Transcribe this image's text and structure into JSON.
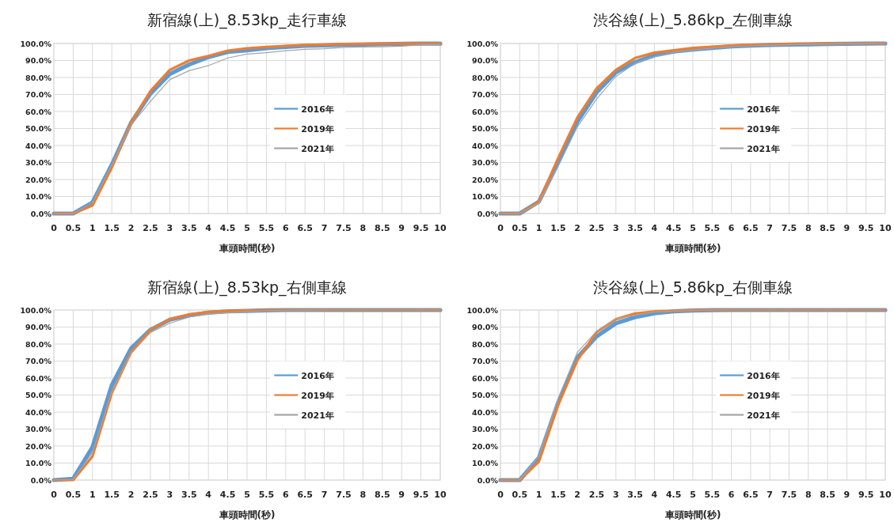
{
  "chart_data": [
    {
      "type": "line",
      "title": "新宿線(上)_8.53kp_走行車線",
      "xlabel": "車頭時間(秒)",
      "x": [
        0,
        0.5,
        1,
        1.5,
        2,
        2.5,
        3,
        3.5,
        4,
        4.5,
        5,
        5.5,
        6,
        6.5,
        7,
        7.5,
        8,
        8.5,
        9,
        9.5,
        10
      ],
      "xlim": [
        0,
        10
      ],
      "xticks": [
        0,
        0.5,
        1,
        1.5,
        2,
        2.5,
        3,
        3.5,
        4,
        4.5,
        5,
        5.5,
        6,
        6.5,
        7,
        7.5,
        8,
        8.5,
        9,
        9.5,
        10
      ],
      "ylim": [
        0,
        100
      ],
      "yticks": [
        {
          "value": 0,
          "label": "0.0%"
        },
        {
          "value": 10,
          "label": "10.0%"
        },
        {
          "value": 20,
          "label": "20.0%"
        },
        {
          "value": 30,
          "label": "30.0%"
        },
        {
          "value": 40,
          "label": "40.0%"
        },
        {
          "value": 50,
          "label": "50.0%"
        },
        {
          "value": 60,
          "label": "60.0%"
        },
        {
          "value": 70,
          "label": "70.0%"
        },
        {
          "value": 80,
          "label": "80.0%"
        },
        {
          "value": 90,
          "label": "90.0%"
        },
        {
          "value": 100,
          "label": "100.0%"
        }
      ],
      "grid": true,
      "legend": "right",
      "line_style": "solid",
      "series": [
        {
          "name": "2016年",
          "color": "#5b9bd5",
          "values": [
            0,
            0,
            6.5,
            28.7,
            53.5,
            70.5,
            82,
            87.6,
            92,
            95,
            96,
            97.2,
            98,
            98.6,
            98.9,
            99.2,
            99.4,
            99.6,
            99.8,
            99.9,
            99.9
          ]
        },
        {
          "name": "2019年",
          "color": "#ed7d31",
          "values": [
            0,
            0,
            4.7,
            27,
            53.5,
            72,
            84.5,
            90,
            92.7,
            95.8,
            97.2,
            98,
            98.6,
            99.1,
            99.4,
            99.7,
            99.8,
            99.9,
            99.9,
            100,
            100
          ]
        },
        {
          "name": "2021年",
          "color": "#a5a5a5",
          "values": [
            0,
            0,
            6.5,
            28.7,
            52,
            66,
            78.8,
            84,
            87,
            91.5,
            93.8,
            94.6,
            95.8,
            96.6,
            96.9,
            97.7,
            98,
            98.1,
            98.4,
            99.2,
            99.5
          ]
        }
      ]
    },
    {
      "type": "line",
      "title": "渋谷線(上)_5.86kp_左側車線",
      "xlabel": "車頭時間(秒)",
      "x": [
        0,
        0.5,
        1,
        1.5,
        2,
        2.5,
        3,
        3.5,
        4,
        4.5,
        5,
        5.5,
        6,
        6.5,
        7,
        7.5,
        8,
        8.5,
        9,
        9.5,
        10
      ],
      "xlim": [
        0,
        10
      ],
      "xticks": [
        0,
        0.5,
        1,
        1.5,
        2,
        2.5,
        3,
        3.5,
        4,
        4.5,
        5,
        5.5,
        6,
        6.5,
        7,
        7.5,
        8,
        8.5,
        9,
        9.5,
        10
      ],
      "ylim": [
        0,
        100
      ],
      "yticks": [
        {
          "value": 0,
          "label": "0.0%"
        },
        {
          "value": 10,
          "label": "10.0%"
        },
        {
          "value": 20,
          "label": "20.0%"
        },
        {
          "value": 30,
          "label": "30.0%"
        },
        {
          "value": 40,
          "label": "40.0%"
        },
        {
          "value": 50,
          "label": "50.0%"
        },
        {
          "value": 60,
          "label": "60.0%"
        },
        {
          "value": 70,
          "label": "70.0%"
        },
        {
          "value": 80,
          "label": "80.0%"
        },
        {
          "value": 90,
          "label": "90.0%"
        },
        {
          "value": 100,
          "label": "100.0%"
        }
      ],
      "grid": true,
      "legend": "right",
      "line_style": "solid",
      "series": [
        {
          "name": "2016年",
          "color": "#5b9bd5",
          "values": [
            0,
            0,
            7,
            30,
            54,
            71.3,
            83,
            89,
            93,
            95.3,
            96.4,
            97.4,
            98.3,
            98.8,
            99.1,
            99.4,
            99.5,
            99.7,
            99.8,
            99.9,
            100
          ]
        },
        {
          "name": "2019年",
          "color": "#ed7d31",
          "values": [
            0,
            0,
            7,
            32.6,
            56.6,
            73.6,
            84.5,
            91.5,
            94.6,
            96,
            97.4,
            98.1,
            98.8,
            99.2,
            99.4,
            99.7,
            99.8,
            99.9,
            100,
            100,
            100
          ]
        },
        {
          "name": "2021年",
          "color": "#a5a5a5",
          "values": [
            0,
            0,
            6,
            28,
            51,
            67.4,
            80.6,
            88.4,
            92.2,
            94.9,
            96.1,
            97.2,
            98.1,
            98.6,
            98.9,
            99.2,
            99.5,
            99.7,
            99.8,
            99.9,
            100
          ]
        }
      ]
    },
    {
      "type": "line",
      "title": "新宿線(上)_8.53kp_右側車線",
      "xlabel": "車頭時間(秒)",
      "x": [
        0,
        0.5,
        1,
        1.5,
        2,
        2.5,
        3,
        3.5,
        4,
        4.5,
        5,
        5.5,
        6,
        6.5,
        7,
        7.5,
        8,
        8.5,
        9,
        9.5,
        10
      ],
      "xlim": [
        0,
        10
      ],
      "xticks": [
        0,
        0.5,
        1,
        1.5,
        2,
        2.5,
        3,
        3.5,
        4,
        4.5,
        5,
        5.5,
        6,
        6.5,
        7,
        7.5,
        8,
        8.5,
        9,
        9.5,
        10
      ],
      "ylim": [
        0,
        100
      ],
      "yticks": [
        {
          "value": 0,
          "label": "0.0%"
        },
        {
          "value": 10,
          "label": "10.0%"
        },
        {
          "value": 20,
          "label": "20.0%"
        },
        {
          "value": 30,
          "label": "30.0%"
        },
        {
          "value": 40,
          "label": "40.0%"
        },
        {
          "value": 50,
          "label": "50.0%"
        },
        {
          "value": 60,
          "label": "60.0%"
        },
        {
          "value": 70,
          "label": "70.0%"
        },
        {
          "value": 80,
          "label": "80.0%"
        },
        {
          "value": 90,
          "label": "90.0%"
        },
        {
          "value": 100,
          "label": "100.0%"
        }
      ],
      "grid": true,
      "legend": "right",
      "line_style": "solid",
      "series": [
        {
          "name": "2016年",
          "color": "#5b9bd5",
          "values": [
            0,
            0.8,
            19.4,
            55.8,
            77.5,
            88.4,
            94.3,
            96.9,
            98.4,
            99.2,
            99.5,
            99.8,
            100,
            100,
            100,
            100,
            100,
            100,
            100,
            100,
            100
          ]
        },
        {
          "name": "2019年",
          "color": "#ed7d31",
          "values": [
            0,
            0,
            14,
            51.2,
            75.2,
            88.4,
            94.6,
            97.4,
            98.9,
            99.5,
            99.7,
            99.8,
            100,
            100,
            100,
            100,
            100,
            100,
            100,
            100,
            100
          ]
        },
        {
          "name": "2021年",
          "color": "#a5a5a5",
          "values": [
            0,
            0.3,
            16.3,
            52,
            74.4,
            86.8,
            92.2,
            95.8,
            97.7,
            98.4,
            99,
            99.5,
            99.8,
            99.9,
            100,
            100,
            100,
            100,
            100,
            100,
            100
          ]
        }
      ]
    },
    {
      "type": "line",
      "title": "渋谷線(上)_5.86kp_右側車線",
      "xlabel": "車頭時間(秒)",
      "x": [
        0,
        0.5,
        1,
        1.5,
        2,
        2.5,
        3,
        3.5,
        4,
        4.5,
        5,
        5.5,
        6,
        6.5,
        7,
        7.5,
        8,
        8.5,
        9,
        9.5,
        10
      ],
      "xlim": [
        0,
        10
      ],
      "xticks": [
        0,
        0.5,
        1,
        1.5,
        2,
        2.5,
        3,
        3.5,
        4,
        4.5,
        5,
        5.5,
        6,
        6.5,
        7,
        7.5,
        8,
        8.5,
        9,
        9.5,
        10
      ],
      "ylim": [
        0,
        100
      ],
      "yticks": [
        {
          "value": 0,
          "label": "0.0%"
        },
        {
          "value": 10,
          "label": "10.0%"
        },
        {
          "value": 20,
          "label": "20.0%"
        },
        {
          "value": 30,
          "label": "30.0%"
        },
        {
          "value": 40,
          "label": "40.0%"
        },
        {
          "value": 50,
          "label": "50.0%"
        },
        {
          "value": 60,
          "label": "60.0%"
        },
        {
          "value": 70,
          "label": "70.0%"
        },
        {
          "value": 80,
          "label": "80.0%"
        },
        {
          "value": 90,
          "label": "90.0%"
        },
        {
          "value": 100,
          "label": "100.0%"
        }
      ],
      "grid": true,
      "legend": "right",
      "line_style": "solid",
      "series": [
        {
          "name": "2016年",
          "color": "#5b9bd5",
          "values": [
            0,
            0,
            13.2,
            45.7,
            72.1,
            84.5,
            92.2,
            95.8,
            98.1,
            99.2,
            99.7,
            99.9,
            100,
            100,
            100,
            100,
            100,
            100,
            100,
            100,
            100
          ]
        },
        {
          "name": "2019年",
          "color": "#ed7d31",
          "values": [
            0,
            0,
            10.9,
            44.2,
            70.5,
            87.1,
            94.6,
            98,
            99.2,
            99.5,
            99.8,
            100,
            100,
            100,
            100,
            100,
            100,
            100,
            100,
            100,
            100
          ]
        },
        {
          "name": "2021年",
          "color": "#a5a5a5",
          "values": [
            0,
            0,
            14,
            48,
            75.2,
            87.6,
            94.9,
            96.9,
            98.9,
            99.4,
            99.8,
            100,
            100,
            100,
            100,
            100,
            100,
            100,
            100,
            100,
            100
          ]
        }
      ]
    }
  ]
}
